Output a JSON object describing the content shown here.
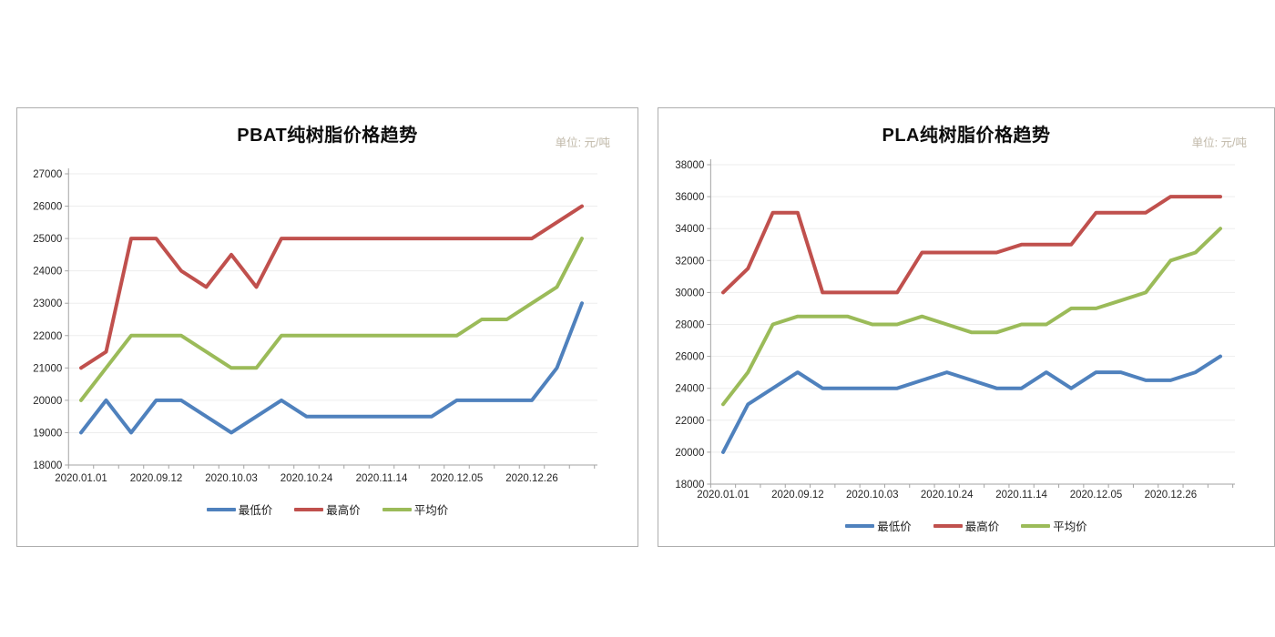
{
  "page": {
    "background": "#ffffff"
  },
  "colors": {
    "series_blue": "#4F81BD",
    "series_red": "#C0504D",
    "series_green": "#9BBB59",
    "axis_line": "#a3a3a3",
    "gridline": "#ededed",
    "tick_text": "#262626",
    "unit_text": "#c0b8a8",
    "panel_border": "#aeaeae",
    "title_text": "#0d0d0d"
  },
  "chart_data": [
    {
      "type": "line",
      "title": "PBAT纯树脂价格趋势",
      "unit_label": "单位: 元/吨",
      "x_labels": [
        "2020.01.01",
        "2020.09.12",
        "2020.10.03",
        "2020.10.24",
        "2020.11.14",
        "2020.12.05",
        "2020.12.26"
      ],
      "x_label_every": 3,
      "n_points": 21,
      "ylim": [
        18000,
        27000
      ],
      "ytick_step": 1000,
      "grid": true,
      "legend_position": "bottom",
      "series": [
        {
          "name": "最低价",
          "color": "#4F81BD",
          "values": [
            19000,
            20000,
            19000,
            20000,
            20000,
            19500,
            19000,
            19500,
            20000,
            19500,
            19500,
            19500,
            19500,
            19500,
            19500,
            20000,
            20000,
            20000,
            20000,
            21000,
            23000
          ]
        },
        {
          "name": "最高价",
          "color": "#C0504D",
          "values": [
            21000,
            21500,
            25000,
            25000,
            24000,
            23500,
            24500,
            23500,
            25000,
            25000,
            25000,
            25000,
            25000,
            25000,
            25000,
            25000,
            25000,
            25000,
            25000,
            25500,
            26000
          ]
        },
        {
          "name": "平均价",
          "color": "#9BBB59",
          "values": [
            20000,
            21000,
            22000,
            22000,
            22000,
            21500,
            21000,
            21000,
            22000,
            22000,
            22000,
            22000,
            22000,
            22000,
            22000,
            22000,
            22500,
            22500,
            23000,
            23500,
            25000
          ]
        }
      ]
    },
    {
      "type": "line",
      "title": "PLA纯树脂价格趋势",
      "unit_label": "单位: 元/吨",
      "x_labels": [
        "2020.01.01",
        "2020.09.12",
        "2020.10.03",
        "2020.10.24",
        "2020.11.14",
        "2020.12.05",
        "2020.12.26"
      ],
      "x_label_every": 3,
      "n_points": 21,
      "ylim": [
        18000,
        38000
      ],
      "ytick_step": 2000,
      "grid": true,
      "legend_position": "bottom",
      "series": [
        {
          "name": "最低价",
          "color": "#4F81BD",
          "values": [
            20000,
            23000,
            24000,
            25000,
            24000,
            24000,
            24000,
            24000,
            24500,
            25000,
            24500,
            24000,
            24000,
            25000,
            24000,
            25000,
            25000,
            24500,
            24500,
            25000,
            26000
          ]
        },
        {
          "name": "最高价",
          "color": "#C0504D",
          "values": [
            30000,
            31500,
            35000,
            35000,
            30000,
            30000,
            30000,
            30000,
            32500,
            32500,
            32500,
            32500,
            33000,
            33000,
            33000,
            35000,
            35000,
            35000,
            36000,
            36000,
            36000
          ]
        },
        {
          "name": "平均价",
          "color": "#9BBB59",
          "values": [
            23000,
            25000,
            28000,
            28500,
            28500,
            28500,
            28000,
            28000,
            28500,
            28000,
            27500,
            27500,
            28000,
            28000,
            29000,
            29000,
            29500,
            30000,
            32000,
            32500,
            34000
          ]
        }
      ]
    }
  ]
}
